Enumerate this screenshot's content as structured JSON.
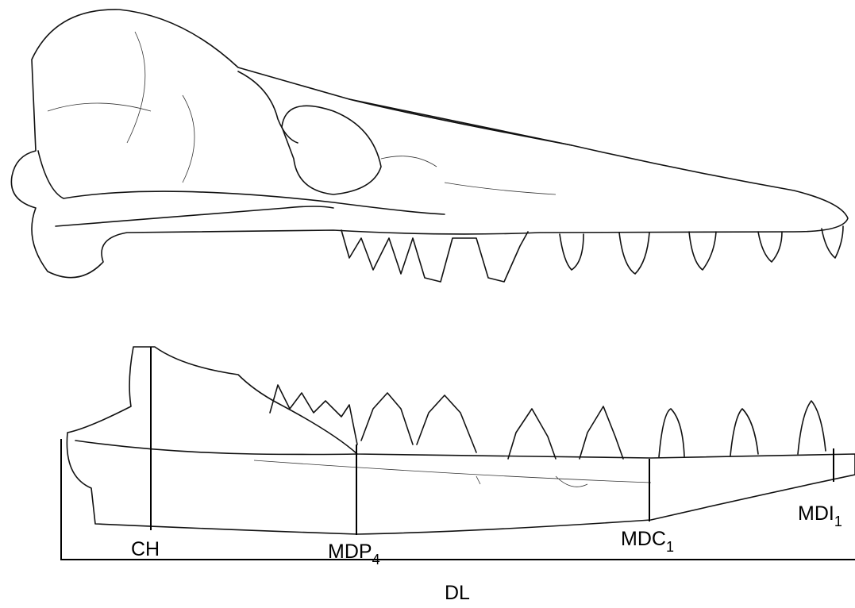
{
  "figure": {
    "labels": [
      {
        "text": "CH"
      },
      {
        "text": "MDP",
        "sub": "4"
      },
      {
        "text": "MDC",
        "sub": "1"
      },
      {
        "text": "MDI",
        "sub": "1"
      },
      {
        "text": "DL"
      }
    ]
  }
}
